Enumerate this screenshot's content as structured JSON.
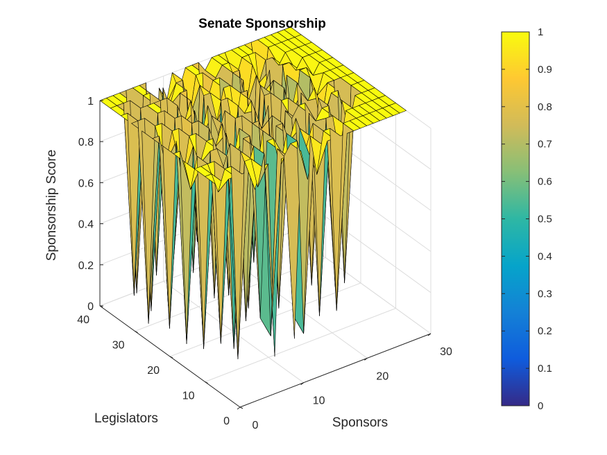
{
  "chart_data": {
    "type": "surface",
    "title": "Senate Sponsorship",
    "xlabel": "Sponsors",
    "ylabel": "Legislators",
    "zlabel": "Sponsorship Score",
    "xlim": [
      0,
      30
    ],
    "ylim": [
      0,
      40
    ],
    "zlim": [
      0,
      1
    ],
    "x_ticks": [
      "0",
      "10",
      "20",
      "30"
    ],
    "y_ticks": [
      "0",
      "10",
      "20",
      "30",
      "40"
    ],
    "z_ticks": [
      "0",
      "0.2",
      "0.4",
      "0.6",
      "0.8",
      "1"
    ],
    "grid": true,
    "colormap": "parula",
    "colormap_stops": [
      "#352a87",
      "#0f5cdd",
      "#1481d6",
      "#06a4ca",
      "#2eb7a4",
      "#87bf77",
      "#d1bb59",
      "#fec832",
      "#f9fb0e"
    ],
    "colorbar": {
      "position": "right",
      "range": [
        0,
        1
      ],
      "ticks": [
        "0",
        "0.1",
        "0.2",
        "0.3",
        "0.4",
        "0.5",
        "0.6",
        "0.7",
        "0.8",
        "0.9",
        "1"
      ]
    },
    "series": [
      {
        "rows": [
          {
            "y": 40,
            "values": [
              1,
              1,
              1,
              1,
              1,
              1,
              1,
              1,
              0.1,
              0.95,
              0.85,
              1,
              0.9,
              1,
              1,
              1,
              0.95,
              1,
              1,
              1,
              1,
              1,
              1,
              1,
              1,
              1,
              1,
              1,
              1,
              1
            ]
          },
          {
            "y": 37,
            "values": [
              1,
              1,
              1,
              1,
              0.05,
              1,
              1,
              0.1,
              1,
              0.9,
              1,
              1,
              0.8,
              1,
              1,
              0.3,
              0.95,
              1,
              1,
              0.9,
              1,
              1,
              1,
              0.7,
              1,
              1,
              1,
              1,
              1,
              1
            ]
          },
          {
            "y": 34,
            "values": [
              1,
              1,
              0.1,
              1,
              1,
              1,
              1,
              1,
              0.2,
              1,
              1,
              0.1,
              1,
              0.9,
              1,
              1,
              0.1,
              1,
              1,
              0.8,
              1,
              0.9,
              1,
              1,
              0.95,
              1,
              1,
              1,
              1,
              1
            ]
          },
          {
            "y": 31,
            "values": [
              1,
              1,
              1,
              0.05,
              1,
              1,
              0.1,
              1,
              0.9,
              1,
              0.3,
              1,
              1,
              0.85,
              1,
              1,
              0.75,
              1,
              0.2,
              1,
              0.9,
              1,
              0.05,
              1,
              1,
              0.95,
              1,
              1,
              1,
              1
            ]
          },
          {
            "y": 28,
            "values": [
              1,
              0.05,
              1,
              1,
              0.1,
              1,
              1,
              0.2,
              1,
              0.85,
              1,
              0.05,
              1,
              1,
              0.8,
              1,
              1,
              0.15,
              1,
              0.9,
              1,
              0.05,
              1,
              0.7,
              1,
              1,
              0.95,
              1,
              1,
              1
            ]
          },
          {
            "y": 25,
            "values": [
              1,
              1,
              0.85,
              1,
              1,
              0.1,
              1,
              1,
              0.05,
              1,
              0.9,
              1,
              0.1,
              1,
              0.95,
              1,
              0.2,
              1,
              1,
              0.05,
              1,
              0.85,
              1,
              0.1,
              1,
              0.9,
              1,
              1,
              1,
              1
            ]
          },
          {
            "y": 22,
            "values": [
              1,
              0.1,
              1,
              0.8,
              1,
              1,
              0.05,
              1,
              0.9,
              1,
              0.15,
              1,
              1,
              0.05,
              1,
              0.9,
              1,
              0.1,
              1,
              1,
              0.05,
              1,
              0.95,
              1,
              0.8,
              1,
              1,
              1,
              1,
              1
            ]
          },
          {
            "y": 19,
            "values": [
              1,
              1,
              0.05,
              1,
              0.9,
              1,
              1,
              0.1,
              1,
              0.85,
              1,
              0.05,
              1,
              1,
              0.3,
              1,
              0.05,
              1,
              0.95,
              1,
              1,
              0.1,
              1,
              0.9,
              1,
              1,
              0.05,
              1,
              1,
              1
            ]
          },
          {
            "y": 16,
            "values": [
              1,
              0.85,
              1,
              0.05,
              1,
              1,
              0.9,
              1,
              0.1,
              1,
              1,
              0.8,
              1,
              0.05,
              1,
              1,
              0.9,
              1,
              0.05,
              1,
              0.95,
              1,
              1,
              0.1,
              1,
              0.85,
              1,
              1,
              1,
              1
            ]
          },
          {
            "y": 13,
            "values": [
              1,
              1,
              1,
              1,
              0.1,
              1,
              0.05,
              1,
              0.9,
              1,
              0.15,
              1,
              1,
              0.85,
              1,
              0.1,
              1,
              0.9,
              1,
              0.05,
              1,
              1,
              0.8,
              1,
              1,
              1,
              1,
              1,
              1,
              1
            ]
          },
          {
            "y": 10,
            "values": [
              1,
              1,
              0.9,
              1,
              1,
              0.05,
              1,
              1,
              0.85,
              1,
              0.1,
              1,
              0.95,
              1,
              1,
              0.05,
              1,
              0.8,
              1,
              1,
              0.1,
              1,
              1,
              1,
              1,
              1,
              1,
              1,
              1,
              1
            ]
          },
          {
            "y": 7,
            "values": [
              1,
              1,
              1,
              1,
              1,
              1,
              0.9,
              1,
              1,
              0.05,
              1,
              1,
              0.1,
              1,
              0.85,
              1,
              1,
              1,
              1,
              1,
              1,
              1,
              1,
              1,
              1,
              1,
              1,
              1,
              1,
              1
            ]
          }
        ]
      }
    ]
  }
}
